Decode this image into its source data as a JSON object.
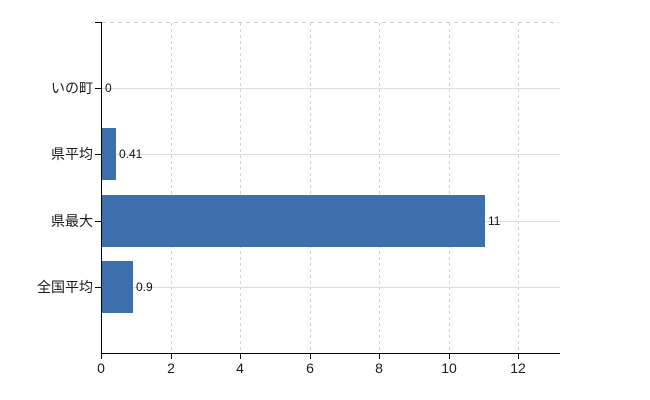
{
  "chart_data": {
    "type": "bar",
    "orientation": "horizontal",
    "title": "",
    "categories": [
      "いの町",
      "県平均",
      "県最大",
      "全国平均"
    ],
    "values": [
      0,
      0.41,
      11,
      0.9
    ],
    "value_labels": [
      "0",
      "0.41",
      "11",
      "0.9"
    ],
    "x_tick_labels": [
      "0",
      "2",
      "4",
      "6",
      "8",
      "10",
      "12"
    ],
    "x_tick_values": [
      0,
      2,
      4,
      6,
      8,
      10,
      12
    ],
    "xlim": [
      0,
      13.2
    ],
    "grid": "on",
    "legend": "none",
    "colors": {
      "bar": "#3e6fad",
      "axis": "#000000",
      "h_gridline": "#d7ded7",
      "v_gridline": "#d8d2d8",
      "top_boundary": "#d3ccd3",
      "label_text": "#1a1a1a"
    }
  }
}
